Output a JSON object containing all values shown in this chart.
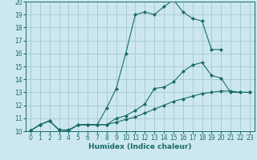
{
  "bg_color": "#cce8ee",
  "grid_color": "#aaccd4",
  "line_color": "#1a6b6b",
  "xlabel": "Humidex (Indice chaleur)",
  "xlim": [
    -0.5,
    23.5
  ],
  "ylim": [
    10,
    20
  ],
  "xticks": [
    0,
    1,
    2,
    3,
    4,
    5,
    6,
    7,
    8,
    9,
    10,
    11,
    12,
    13,
    14,
    15,
    16,
    17,
    18,
    19,
    20,
    21,
    22,
    23
  ],
  "yticks": [
    10,
    11,
    12,
    13,
    14,
    15,
    16,
    17,
    18,
    19,
    20
  ],
  "line1_x": [
    0,
    1,
    2,
    3,
    4,
    5,
    6,
    7,
    8,
    9,
    10,
    11,
    12,
    13,
    14,
    15,
    16,
    17,
    18,
    19,
    20
  ],
  "line1_y": [
    10.05,
    10.5,
    10.8,
    10.1,
    10.05,
    10.5,
    10.5,
    10.5,
    11.8,
    13.3,
    16.0,
    19.0,
    19.2,
    19.0,
    19.6,
    20.15,
    19.2,
    18.7,
    18.5,
    16.3,
    16.3
  ],
  "line2_x": [
    0,
    1,
    2,
    3,
    4,
    5,
    6,
    7,
    8,
    9,
    10,
    11,
    12,
    13,
    14,
    15,
    16,
    17,
    18,
    19,
    20,
    21,
    22,
    23
  ],
  "line2_y": [
    10.05,
    10.5,
    10.8,
    10.1,
    10.1,
    10.5,
    10.5,
    10.5,
    10.5,
    11.0,
    11.2,
    11.6,
    12.1,
    13.3,
    13.4,
    13.8,
    14.6,
    15.1,
    15.3,
    14.3,
    14.1,
    13.0,
    13.0,
    13.0
  ],
  "line3_x": [
    0,
    1,
    2,
    3,
    4,
    5,
    6,
    7,
    8,
    9,
    10,
    11,
    12,
    13,
    14,
    15,
    16,
    17,
    18,
    19,
    20,
    21,
    22,
    23
  ],
  "line3_y": [
    10.05,
    10.5,
    10.8,
    10.1,
    10.05,
    10.5,
    10.5,
    10.5,
    10.5,
    10.7,
    10.9,
    11.1,
    11.4,
    11.7,
    12.0,
    12.3,
    12.5,
    12.7,
    12.9,
    13.0,
    13.1,
    13.1,
    13.0,
    13.0
  ],
  "marker": "D",
  "markersize": 2.0,
  "linewidth": 0.8,
  "tick_fontsize": 5.5,
  "label_fontsize": 6.5
}
